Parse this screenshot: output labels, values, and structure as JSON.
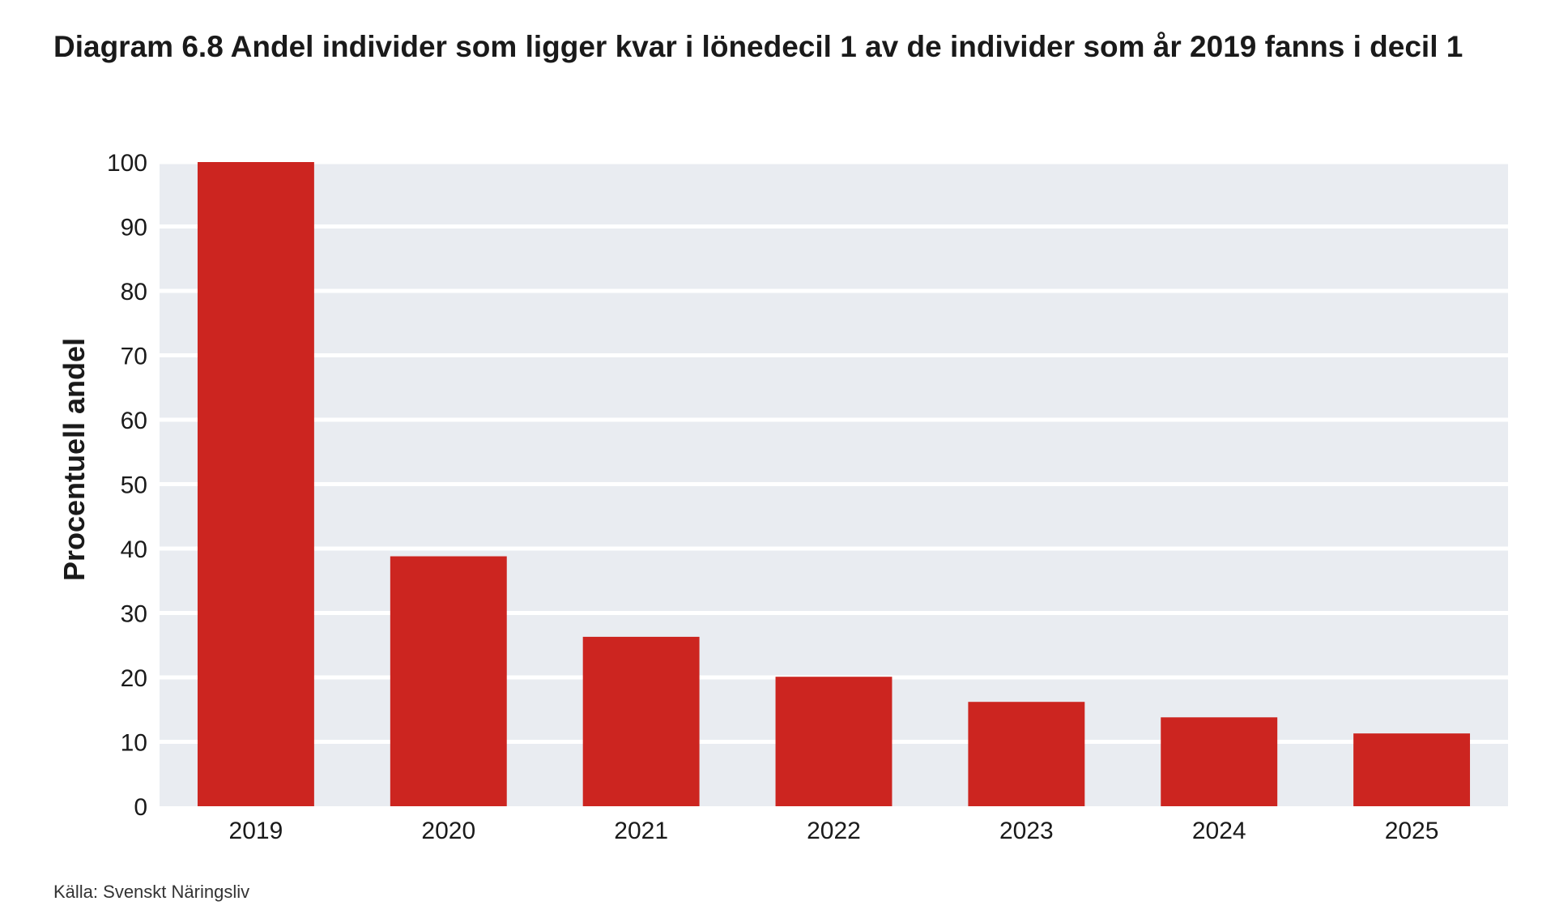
{
  "chart_data": {
    "type": "bar",
    "title": "Diagram 6.8 Andel individer som ligger kvar i lönedecil 1 av de individer som år 2019 fanns i decil 1",
    "xlabel": "",
    "ylabel": "Procentuell andel",
    "categories": [
      "2019",
      "2020",
      "2021",
      "2022",
      "2023",
      "2024",
      "2025"
    ],
    "values": [
      100,
      38.8,
      26.3,
      20.1,
      16.2,
      13.8,
      11.3
    ],
    "ylim": [
      0,
      100
    ],
    "yticks": [
      0,
      10,
      20,
      30,
      40,
      50,
      60,
      70,
      80,
      90,
      100
    ],
    "grid": true,
    "legend": "none",
    "colors": {
      "bar": "#cc2520",
      "plot_background": "#e9ecf1",
      "gridline": "#ffffff"
    }
  },
  "source_text": "Källa: Svenskt Näringsliv"
}
